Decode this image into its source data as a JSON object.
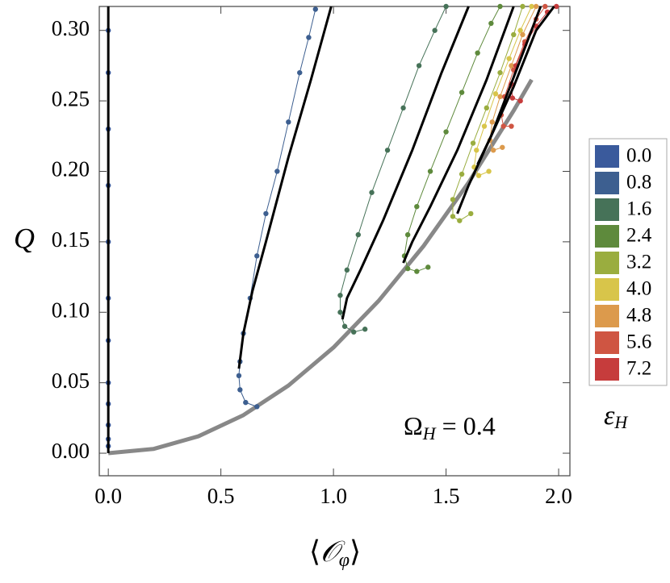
{
  "chart_data": {
    "type": "line",
    "xlabel": {
      "open": "⟨",
      "symbol": "𝒪",
      "subscript": "φ",
      "close": "⟩"
    },
    "ylabel": "Q",
    "annotation": {
      "symbol": "Ω",
      "subscript": "H",
      "text": "= 0.4"
    },
    "legend_title": {
      "symbol": "ε",
      "subscript": "H"
    },
    "legend": "right",
    "xlim": [
      -0.04,
      2.05
    ],
    "ylim": [
      -0.016,
      0.317
    ],
    "xticks": [
      {
        "value": 0,
        "label": "0.0"
      },
      {
        "value": 0.5,
        "label": "0.5"
      },
      {
        "value": 1,
        "label": "1.0"
      },
      {
        "value": 1.5,
        "label": "1.5"
      },
      {
        "value": 2,
        "label": "2.0"
      }
    ],
    "yticks": [
      {
        "value": 0,
        "label": "0.00"
      },
      {
        "value": 0.05,
        "label": "0.05"
      },
      {
        "value": 0.1,
        "label": "0.10"
      },
      {
        "value": 0.15,
        "label": "0.15"
      },
      {
        "value": 0.2,
        "label": "0.20"
      },
      {
        "value": 0.25,
        "label": "0.25"
      },
      {
        "value": 0.3,
        "label": "0.30"
      }
    ],
    "series": [
      {
        "name": "0.0",
        "color": "#3a5a9c",
        "x": [
          0,
          0,
          0,
          0,
          0,
          0,
          0,
          0,
          0,
          0,
          0,
          0
        ],
        "values": [
          0.005,
          0.01,
          0.02,
          0.035,
          0.05,
          0.08,
          0.11,
          0.15,
          0.19,
          0.23,
          0.27,
          0.3
        ]
      },
      {
        "name": "0.8",
        "color": "#3d5f90",
        "x": [
          0.66,
          0.61,
          0.585,
          0.58,
          0.585,
          0.6,
          0.63,
          0.66,
          0.7,
          0.75,
          0.8,
          0.85,
          0.89,
          0.92
        ],
        "values": [
          0.033,
          0.036,
          0.045,
          0.055,
          0.065,
          0.085,
          0.11,
          0.14,
          0.17,
          0.2,
          0.235,
          0.27,
          0.295,
          0.315
        ]
      },
      {
        "name": "1.6",
        "color": "#467258",
        "x": [
          1.14,
          1.09,
          1.05,
          1.03,
          1.03,
          1.06,
          1.11,
          1.17,
          1.24,
          1.31,
          1.38,
          1.45,
          1.5
        ],
        "values": [
          0.088,
          0.086,
          0.09,
          0.1,
          0.112,
          0.13,
          0.155,
          0.185,
          0.215,
          0.245,
          0.275,
          0.3,
          0.317
        ]
      },
      {
        "name": "2.4",
        "color": "#5e8a3c",
        "x": [
          1.42,
          1.37,
          1.33,
          1.315,
          1.33,
          1.37,
          1.43,
          1.5,
          1.57,
          1.64,
          1.7,
          1.74
        ],
        "values": [
          0.132,
          0.129,
          0.131,
          0.14,
          0.155,
          0.175,
          0.2,
          0.228,
          0.256,
          0.284,
          0.305,
          0.317
        ]
      },
      {
        "name": "3.2",
        "color": "#9aad3f",
        "x": [
          1.61,
          1.56,
          1.53,
          1.53,
          1.57,
          1.62,
          1.68,
          1.74,
          1.8,
          1.84
        ],
        "values": [
          0.17,
          0.165,
          0.168,
          0.18,
          0.198,
          0.22,
          0.245,
          0.27,
          0.297,
          0.317
        ]
      },
      {
        "name": "4.0",
        "color": "#d8c54a",
        "x": [
          1.69,
          1.645,
          1.625,
          1.635,
          1.67,
          1.72,
          1.78,
          1.83,
          1.88
        ],
        "values": [
          0.2,
          0.197,
          0.203,
          0.215,
          0.232,
          0.255,
          0.28,
          0.3,
          0.317
        ]
      },
      {
        "name": "4.8",
        "color": "#dc9a4c",
        "x": [
          1.75,
          1.71,
          1.695,
          1.705,
          1.74,
          1.79,
          1.84,
          1.9
        ],
        "values": [
          0.217,
          0.215,
          0.222,
          0.235,
          0.253,
          0.275,
          0.297,
          0.317
        ]
      },
      {
        "name": "5.6",
        "color": "#cf5542",
        "x": [
          1.79,
          1.755,
          1.745,
          1.76,
          1.8,
          1.85,
          1.9,
          1.94
        ],
        "values": [
          0.232,
          0.232,
          0.24,
          0.253,
          0.272,
          0.292,
          0.308,
          0.317
        ]
      },
      {
        "name": "7.2",
        "color": "#c63c3c",
        "x": [
          1.83,
          1.795,
          1.79,
          1.81,
          1.85,
          1.9,
          1.95,
          1.99
        ],
        "values": [
          0.25,
          0.252,
          0.262,
          0.275,
          0.29,
          0.303,
          0.313,
          0.317
        ]
      }
    ],
    "reference_curves": [
      {
        "color": "#000000",
        "x": [
          0,
          0
        ],
        "values": [
          0,
          0.317
        ]
      },
      {
        "color": "#000000",
        "x": [
          0.58,
          0.6,
          0.64,
          0.7,
          0.8,
          0.9,
          0.99
        ],
        "values": [
          0.06,
          0.085,
          0.115,
          0.15,
          0.21,
          0.265,
          0.317
        ]
      },
      {
        "color": "#000000",
        "x": [
          1.04,
          1.06,
          1.12,
          1.22,
          1.35,
          1.48,
          1.6
        ],
        "values": [
          0.095,
          0.11,
          0.13,
          0.165,
          0.215,
          0.27,
          0.317
        ]
      },
      {
        "color": "#000000",
        "x": [
          1.31,
          1.35,
          1.43,
          1.55,
          1.68,
          1.8
        ],
        "values": [
          0.135,
          0.15,
          0.175,
          0.215,
          0.265,
          0.317
        ]
      },
      {
        "color": "#000000",
        "x": [
          1.55,
          1.6,
          1.7,
          1.82,
          1.92
        ],
        "values": [
          0.17,
          0.19,
          0.225,
          0.275,
          0.317
        ]
      },
      {
        "color": "#000000",
        "x": [
          1.64,
          1.7,
          1.8,
          1.9,
          1.98
        ],
        "values": [
          0.205,
          0.225,
          0.26,
          0.3,
          0.317
        ]
      }
    ],
    "boundary": {
      "color": "#888888",
      "x": [
        0,
        0.2,
        0.4,
        0.6,
        0.8,
        1.0,
        1.2,
        1.4,
        1.6,
        1.8,
        1.88
      ],
      "values": [
        0,
        0.003,
        0.012,
        0.027,
        0.048,
        0.075,
        0.108,
        0.147,
        0.192,
        0.243,
        0.265
      ]
    }
  }
}
